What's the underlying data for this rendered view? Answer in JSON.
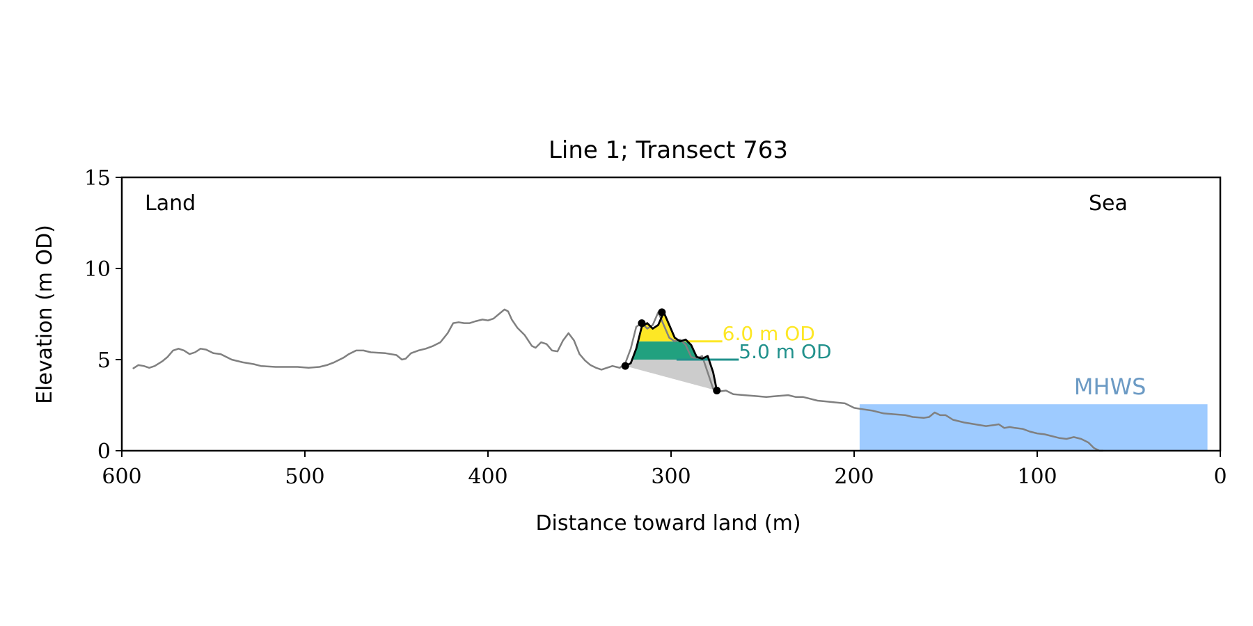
{
  "chart_data": {
    "type": "line",
    "title": "Line 1; Transect 763",
    "xlabel": "Distance toward land (m)",
    "ylabel": "Elevation (m OD)",
    "xlim": [
      600,
      0
    ],
    "ylim": [
      0,
      15
    ],
    "x_ticks": [
      "600",
      "500",
      "400",
      "300",
      "200",
      "100",
      "0"
    ],
    "y_ticks": [
      "0",
      "5",
      "10",
      "15"
    ],
    "grid": false,
    "annotations": {
      "land": "Land",
      "sea": "Sea",
      "mhws": "MHWS"
    },
    "colors": {
      "profile": "#808080",
      "dune": "#000000",
      "sediment_above_6": "#fde725",
      "sediment_5_to_6": "#21a17f",
      "sediment_below_5": "#cccccc",
      "mhws_fill": "#9ecbff",
      "mhws_label": "#6b9ac4",
      "level_6_line": "#fde725",
      "level_5_line": "#21918c"
    },
    "levels": [
      {
        "value": 6.0,
        "label": "6.0 m OD",
        "x_start": 292,
        "x_end": 272
      },
      {
        "value": 5.0,
        "label": "5.0 m OD",
        "x_start": 297,
        "x_end": 263
      }
    ],
    "mhws": {
      "elevation": 2.55,
      "x_start": 197,
      "x_end": 7
    },
    "profile": {
      "x": [
        594,
        591,
        588,
        585,
        582,
        578,
        575,
        572,
        569,
        566,
        563,
        560,
        557,
        554,
        550,
        546,
        540,
        534,
        528,
        524,
        516,
        510,
        504,
        498,
        492,
        488,
        484,
        479,
        476,
        472,
        468,
        464,
        456,
        450,
        447,
        445,
        442,
        438,
        434,
        430,
        426,
        422,
        419,
        416,
        413,
        410,
        407,
        403,
        400,
        397,
        394,
        391,
        389,
        387,
        384,
        380,
        376,
        374,
        371,
        368,
        365,
        362,
        359,
        356,
        353,
        350,
        347,
        344,
        341,
        338,
        335,
        332,
        328,
        325,
        322,
        319,
        316,
        313,
        310,
        307,
        304,
        301,
        298,
        295,
        292,
        289,
        286,
        283,
        280,
        277,
        274,
        270,
        266,
        260,
        254,
        248,
        242,
        236,
        232,
        228,
        224,
        220,
        215,
        210,
        205,
        200,
        197,
        190,
        184,
        178,
        172,
        168,
        162,
        159,
        156,
        153,
        150,
        146,
        140,
        134,
        128,
        124,
        121,
        118,
        115,
        112,
        108,
        104,
        100,
        96,
        92,
        88,
        84,
        80,
        76,
        72,
        69,
        66,
        64
      ],
      "y": [
        4.5,
        4.7,
        4.65,
        4.55,
        4.65,
        4.9,
        5.15,
        5.5,
        5.6,
        5.5,
        5.3,
        5.4,
        5.6,
        5.55,
        5.35,
        5.3,
        5.0,
        4.85,
        4.75,
        4.65,
        4.6,
        4.6,
        4.6,
        4.55,
        4.6,
        4.7,
        4.85,
        5.1,
        5.3,
        5.5,
        5.5,
        5.4,
        5.35,
        5.25,
        5.0,
        5.05,
        5.35,
        5.5,
        5.6,
        5.75,
        5.95,
        6.45,
        7.0,
        7.05,
        7.0,
        7.0,
        7.1,
        7.2,
        7.15,
        7.25,
        7.5,
        7.75,
        7.65,
        7.2,
        6.75,
        6.35,
        5.75,
        5.65,
        5.95,
        5.85,
        5.5,
        5.45,
        6.05,
        6.45,
        6.05,
        5.3,
        4.95,
        4.7,
        4.55,
        4.45,
        4.55,
        4.65,
        4.55,
        4.8,
        5.6,
        6.8,
        7.0,
        6.7,
        6.9,
        7.6,
        6.9,
        6.2,
        6.0,
        6.1,
        5.8,
        5.15,
        5.05,
        5.2,
        4.3,
        3.4,
        3.25,
        3.3,
        3.1,
        3.05,
        3.0,
        2.95,
        3.0,
        3.05,
        2.95,
        2.95,
        2.85,
        2.75,
        2.7,
        2.65,
        2.6,
        2.35,
        2.3,
        2.2,
        2.05,
        2.0,
        1.95,
        1.85,
        1.8,
        1.85,
        2.1,
        1.95,
        1.95,
        1.7,
        1.55,
        1.45,
        1.35,
        1.4,
        1.45,
        1.25,
        1.3,
        1.25,
        1.2,
        1.05,
        0.95,
        0.9,
        0.8,
        0.7,
        0.65,
        0.75,
        0.65,
        0.45,
        0.15,
        0.0,
        0.0
      ]
    },
    "dune": {
      "x": [
        325,
        322,
        319,
        316,
        313,
        310,
        307,
        304,
        301,
        298,
        295,
        292,
        289,
        286,
        283,
        280,
        277,
        275
      ],
      "y": [
        4.65,
        4.8,
        5.6,
        6.8,
        7.0,
        6.7,
        6.9,
        7.6,
        6.9,
        6.2,
        6.0,
        6.1,
        5.8,
        5.15,
        5.05,
        5.2,
        4.3,
        3.3
      ]
    },
    "dune_markers": [
      {
        "x": 325,
        "y": 4.65
      },
      {
        "x": 316,
        "y": 7.0
      },
      {
        "x": 305,
        "y": 7.6
      },
      {
        "x": 275,
        "y": 3.3
      }
    ]
  }
}
